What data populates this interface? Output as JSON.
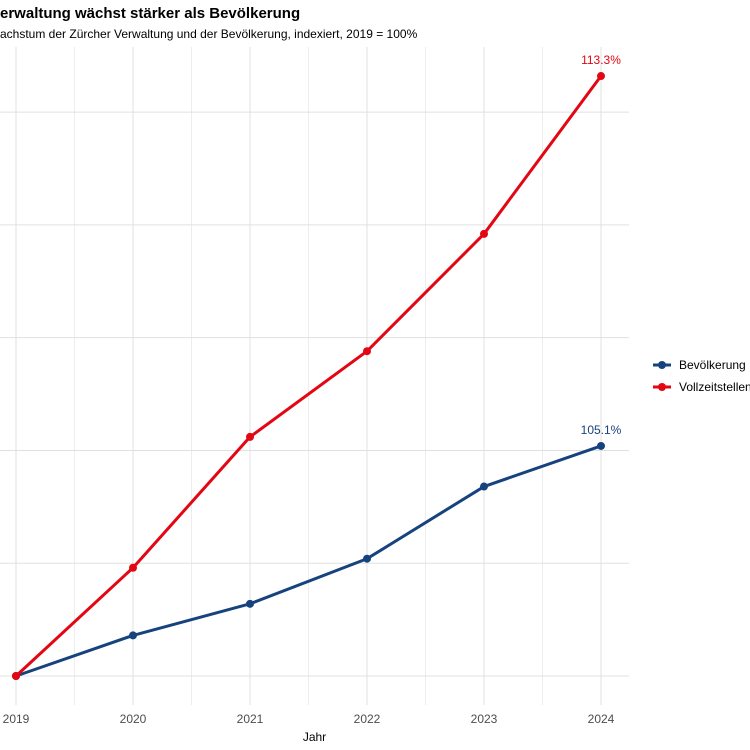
{
  "header": {
    "title": "erwaltung wächst stärker als Bevölkerung",
    "subtitle": "achstum der Zürcher Verwaltung und der Bevölkerung, indexiert, 2019 = 100%"
  },
  "chart_data": {
    "type": "line",
    "x": [
      2019,
      2020,
      2021,
      2022,
      2023,
      2024
    ],
    "x_tick_labels": [
      "2019",
      "2020",
      "2021",
      "2022",
      "2023",
      "2024"
    ],
    "series": [
      {
        "name": "Bevölkerung",
        "color": "#16437e",
        "values": [
          100,
          100.9,
          101.6,
          102.6,
          104.2,
          105.1
        ],
        "end_label": "105.1%"
      },
      {
        "name": "Vollzeitstellen V",
        "color": "#e30613",
        "values": [
          100,
          102.4,
          105.3,
          107.2,
          109.8,
          113.3
        ],
        "end_label": "113.3%"
      }
    ],
    "xlabel": "Jahr",
    "ylabel": "",
    "ylim": [
      99.3,
      114.0
    ],
    "y_gridlines": [
      100,
      102.5,
      105,
      107.5,
      110,
      112.5
    ],
    "x_gridlines_minor": [
      2019.5,
      2020.5,
      2021.5,
      2022.5,
      2023.5
    ],
    "grid": true,
    "legend_position": "right",
    "colors": {
      "grid_major": "#e0e0e0",
      "grid_minor": "#ededed",
      "tick_text": "#4d4d4d",
      "axis_title_text": "#000000"
    }
  },
  "legend": {
    "items": [
      {
        "label": "Bevölkerung"
      },
      {
        "label": "Vollzeitstellen V"
      }
    ]
  }
}
